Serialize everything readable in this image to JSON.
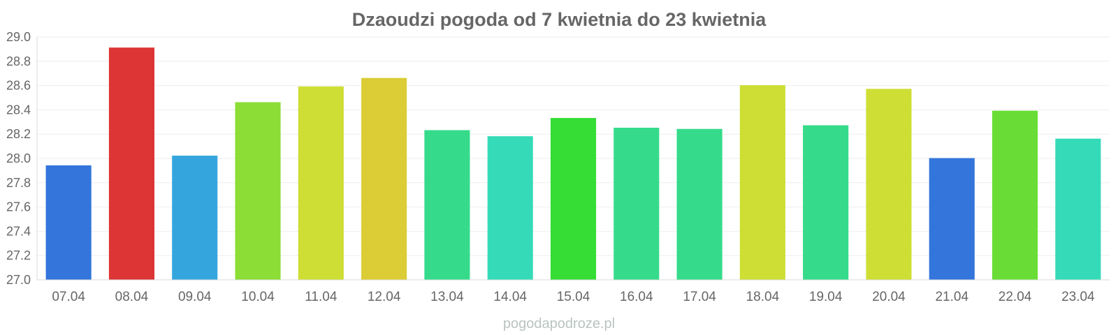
{
  "chart_data": {
    "type": "bar",
    "title": "Dzaoudzi pogoda od 7 kwietnia do 23 kwietnia",
    "xlabel": "",
    "ylabel": "",
    "categories": [
      "07.04",
      "08.04",
      "09.04",
      "10.04",
      "11.04",
      "12.04",
      "13.04",
      "14.04",
      "15.04",
      "16.04",
      "17.04",
      "18.04",
      "19.04",
      "20.04",
      "21.04",
      "22.04",
      "23.04"
    ],
    "values": [
      27.94,
      28.91,
      28.02,
      28.46,
      28.59,
      28.66,
      28.23,
      28.18,
      28.33,
      28.25,
      28.24,
      28.6,
      28.27,
      28.57,
      28.0,
      28.39,
      28.16
    ],
    "colors": [
      "#3375db",
      "#dd3535",
      "#35a6dd",
      "#8cdd35",
      "#cede35",
      "#dccc35",
      "#35db8a",
      "#35dbb8",
      "#35dd35",
      "#35db8a",
      "#35db8a",
      "#cede35",
      "#35db8a",
      "#cede35",
      "#3375db",
      "#69dd35",
      "#35dbb8"
    ],
    "ylim": [
      27.0,
      29.0
    ],
    "yticks": [
      "27.0",
      "27.2",
      "27.4",
      "27.6",
      "27.8",
      "28.0",
      "28.2",
      "28.4",
      "28.6",
      "28.8",
      "29.0"
    ],
    "grid": true,
    "legend": "none"
  },
  "watermark": "pogodapodroze.pl"
}
